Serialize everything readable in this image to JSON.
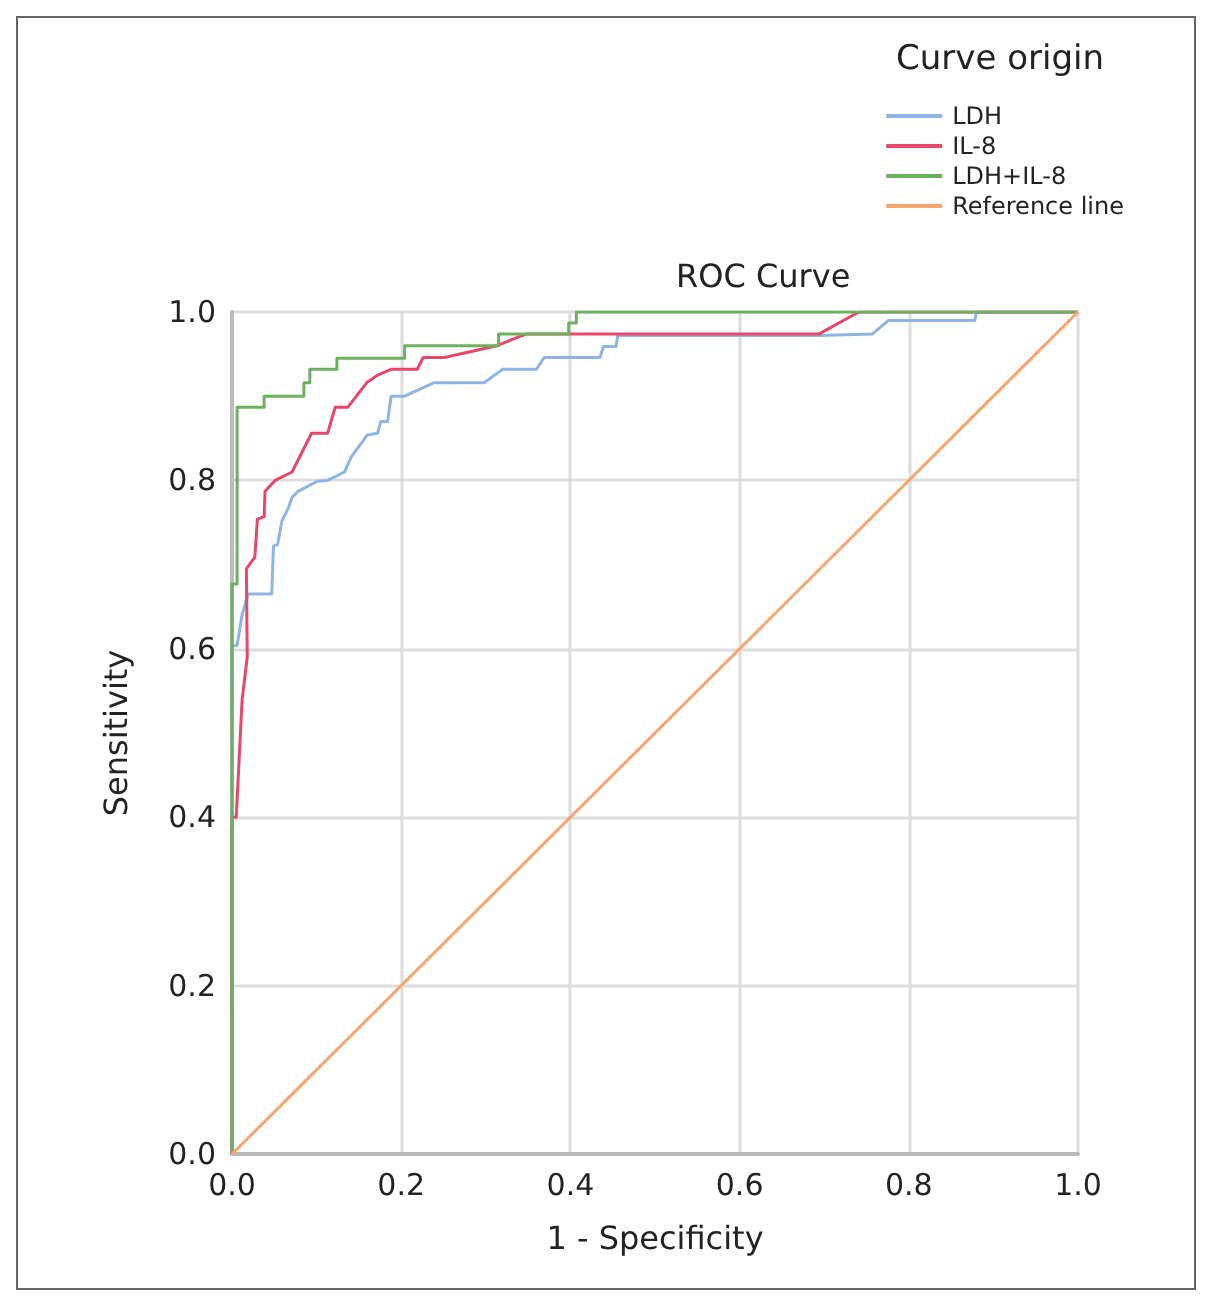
{
  "chart_data": {
    "type": "line",
    "title": "ROC Curve",
    "xlabel": "1 - Specificity",
    "ylabel": "Sensitivity",
    "legend_title": "Curve origin",
    "legend": "top right",
    "grid": true,
    "marker": "none",
    "line_style": "solid",
    "xlim": [
      0,
      1
    ],
    "ylim": [
      0,
      1
    ],
    "xticks": [
      {
        "value": 0,
        "label": "0.0"
      },
      {
        "value": 0.2,
        "label": "0.2"
      },
      {
        "value": 0.4,
        "label": "0.4"
      },
      {
        "value": 0.6,
        "label": "0.6"
      },
      {
        "value": 0.8,
        "label": "0.8"
      },
      {
        "value": 1,
        "label": "1.0"
      }
    ],
    "yticks": [
      {
        "value": 0,
        "label": "0.0"
      },
      {
        "value": 0.2,
        "label": "0.2"
      },
      {
        "value": 0.4,
        "label": "0.4"
      },
      {
        "value": 0.6,
        "label": "0.6"
      },
      {
        "value": 0.8,
        "label": "0.8"
      },
      {
        "value": 1,
        "label": "1.0"
      }
    ],
    "series": [
      {
        "name": "LDH",
        "color": "#8fb4e3",
        "x": [
          0,
          0,
          0.006,
          0.012,
          0.019,
          0.047,
          0.049,
          0.054,
          0.059,
          0.067,
          0.071,
          0.078,
          0.101,
          0.113,
          0.133,
          0.141,
          0.16,
          0.172,
          0.176,
          0.184,
          0.188,
          0.204,
          0.239,
          0.298,
          0.32,
          0.36,
          0.369,
          0.435,
          0.439,
          0.454,
          0.456,
          0.694,
          0.757,
          0.776,
          0.878,
          0.88,
          1
        ],
        "values": [
          0,
          0.604,
          0.604,
          0.641,
          0.665,
          0.665,
          0.722,
          0.724,
          0.752,
          0.768,
          0.78,
          0.787,
          0.799,
          0.8,
          0.81,
          0.828,
          0.854,
          0.856,
          0.87,
          0.87,
          0.9,
          0.9,
          0.916,
          0.916,
          0.932,
          0.932,
          0.946,
          0.946,
          0.959,
          0.959,
          0.972,
          0.972,
          0.974,
          0.99,
          0.99,
          1,
          1
        ]
      },
      {
        "name": "IL-8",
        "color": "#e8476a",
        "x": [
          0,
          0,
          0.005,
          0.012,
          0.018,
          0.017,
          0.027,
          0.03,
          0.038,
          0.039,
          0.051,
          0.071,
          0.094,
          0.113,
          0.122,
          0.137,
          0.16,
          0.172,
          0.188,
          0.219,
          0.226,
          0.251,
          0.313,
          0.348,
          0.694,
          0.741,
          1
        ],
        "values": [
          0,
          0.4,
          0.4,
          0.54,
          0.59,
          0.695,
          0.709,
          0.754,
          0.757,
          0.787,
          0.8,
          0.81,
          0.856,
          0.856,
          0.887,
          0.887,
          0.917,
          0.925,
          0.932,
          0.932,
          0.946,
          0.946,
          0.96,
          0.974,
          0.974,
          1,
          1
        ]
      },
      {
        "name": "LDH+IL-8",
        "color": "#6cb25e",
        "x": [
          0,
          0,
          0.006,
          0.006,
          0.038,
          0.038,
          0.085,
          0.085,
          0.092,
          0.092,
          0.124,
          0.124,
          0.204,
          0.204,
          0.315,
          0.315,
          0.398,
          0.398,
          0.407,
          0.407,
          1
        ],
        "values": [
          0,
          0.677,
          0.677,
          0.887,
          0.887,
          0.9,
          0.9,
          0.916,
          0.916,
          0.932,
          0.932,
          0.945,
          0.945,
          0.96,
          0.96,
          0.974,
          0.974,
          0.987,
          0.987,
          1,
          1
        ]
      },
      {
        "name": "Reference line",
        "color": "#f7a46f",
        "x": [
          0,
          1
        ],
        "values": [
          0,
          1
        ]
      }
    ]
  }
}
